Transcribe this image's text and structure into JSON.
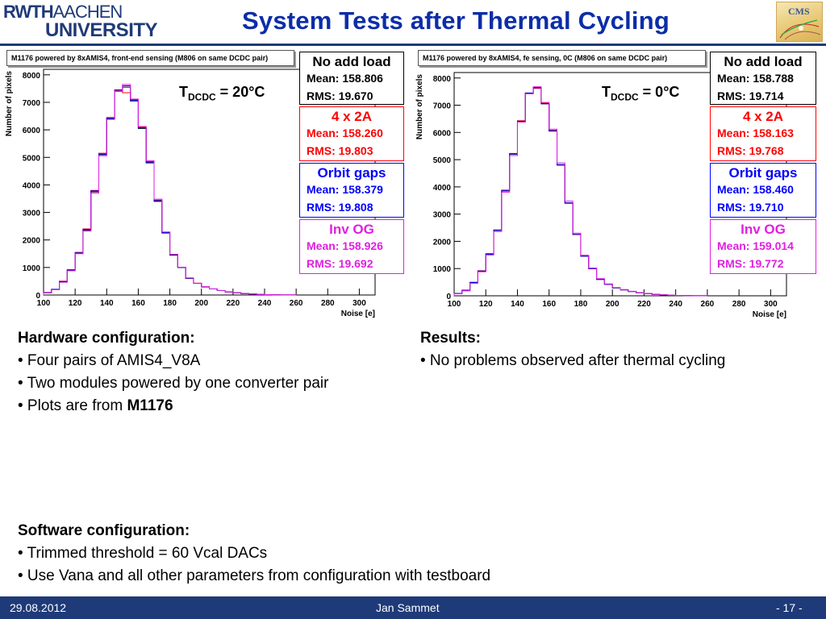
{
  "header": {
    "logo_line1": "RWTH",
    "logo_line1b": "AACHEN",
    "logo_line2": "UNIVERSITY",
    "title": "System Tests after Thermal Cycling",
    "cms_logo_text": "CMS"
  },
  "colors": {
    "brand": "#1f3a78",
    "title": "#0b2da8",
    "no_add_load": "#000000",
    "four_x_2a": "#ff0000",
    "orbit_gaps": "#0000ff",
    "inv_og": "#e020e0"
  },
  "chart_data": [
    {
      "type": "histogram",
      "title": "M1176 powered by 8xAMIS4, front-end sensing (M806 on same DCDC pair)",
      "annotation_prefix": "T",
      "annotation_sub": "DCDC",
      "annotation_suffix": " = 20°C",
      "xlabel": "Noise [e]",
      "ylabel": "Number of pixels",
      "xlim": [
        100,
        310
      ],
      "ylim": [
        0,
        8200
      ],
      "xticks": [
        100,
        120,
        140,
        160,
        180,
        200,
        220,
        240,
        260,
        280,
        300
      ],
      "yticks": [
        0,
        1000,
        2000,
        3000,
        4000,
        5000,
        6000,
        7000,
        8000
      ],
      "bin_width": 5,
      "bin_start": 100,
      "series": [
        {
          "name": "No add load",
          "mean": "Mean: 158.806",
          "rms": "RMS: 19.670",
          "color": "#000000",
          "values": [
            80,
            200,
            480,
            900,
            1520,
            2350,
            3750,
            5100,
            6400,
            7450,
            7600,
            7050,
            6050,
            4800,
            3400,
            2250,
            1450,
            1000,
            600,
            420,
            290,
            220,
            160,
            110,
            80,
            50,
            35,
            20,
            12,
            8,
            4,
            2
          ]
        },
        {
          "name": "4 x 2A",
          "mean": "Mean: 158.260",
          "rms": "RMS: 19.803",
          "color": "#ff0000",
          "values": [
            90,
            210,
            500,
            920,
            1550,
            2400,
            3800,
            5150,
            6450,
            7400,
            7350,
            7100,
            6100,
            4850,
            3450,
            2280,
            1480,
            1000,
            620,
            430,
            300,
            220,
            160,
            110,
            80,
            50,
            35,
            20,
            12,
            8,
            4,
            2
          ]
        },
        {
          "name": "Orbit gaps",
          "mean": "Mean: 158.379",
          "rms": "RMS: 19.808",
          "color": "#0000ff",
          "values": [
            85,
            205,
            490,
            910,
            1530,
            2380,
            3780,
            5120,
            6420,
            7420,
            7550,
            7080,
            6080,
            4830,
            3430,
            2270,
            1470,
            1000,
            610,
            425,
            295,
            220,
            160,
            110,
            80,
            50,
            35,
            20,
            12,
            8,
            4,
            2
          ]
        },
        {
          "name": "Inv OG",
          "mean": "Mean: 158.926",
          "rms": "RMS: 19.692",
          "color": "#e020e0",
          "values": [
            75,
            190,
            460,
            880,
            1500,
            2320,
            3700,
            5060,
            6380,
            7420,
            7650,
            7120,
            6120,
            4880,
            3480,
            2290,
            1480,
            1010,
            620,
            430,
            300,
            225,
            165,
            115,
            82,
            52,
            36,
            21,
            13,
            8,
            4,
            2
          ]
        }
      ]
    },
    {
      "type": "histogram",
      "title": "M1176 powered by 8xAMIS4, fe sensing, 0C (M806 on same DCDC pair)",
      "annotation_prefix": "T",
      "annotation_sub": "DCDC",
      "annotation_suffix": " = 0°C",
      "xlabel": "Noise [e]",
      "ylabel": "Number of pixels",
      "xlim": [
        100,
        310
      ],
      "ylim": [
        0,
        8200
      ],
      "xticks": [
        100,
        120,
        140,
        160,
        180,
        200,
        220,
        240,
        260,
        280,
        300
      ],
      "yticks": [
        0,
        1000,
        2000,
        3000,
        4000,
        5000,
        6000,
        7000,
        8000
      ],
      "bin_width": 5,
      "bin_start": 100,
      "series": [
        {
          "name": "No add load",
          "mean": "Mean: 158.788",
          "rms": "RMS: 19.714",
          "color": "#000000",
          "values": [
            80,
            190,
            480,
            900,
            1520,
            2400,
            3850,
            5200,
            6400,
            7450,
            7650,
            7050,
            6050,
            4800,
            3400,
            2250,
            1450,
            1000,
            600,
            420,
            290,
            220,
            160,
            110,
            80,
            50,
            35,
            20,
            12,
            8,
            4,
            2
          ]
        },
        {
          "name": "4 x 2A",
          "mean": "Mean: 158.163",
          "rms": "RMS: 19.768",
          "color": "#ff0000",
          "values": [
            90,
            210,
            500,
            920,
            1550,
            2420,
            3880,
            5230,
            6430,
            7430,
            7620,
            7080,
            6080,
            4820,
            3420,
            2260,
            1460,
            1000,
            610,
            425,
            295,
            220,
            160,
            110,
            80,
            50,
            35,
            20,
            12,
            8,
            4,
            2
          ]
        },
        {
          "name": "Orbit gaps",
          "mean": "Mean: 158.460",
          "rms": "RMS: 19.710",
          "color": "#0000ff",
          "values": [
            85,
            200,
            490,
            910,
            1530,
            2410,
            3860,
            5210,
            6410,
            7440,
            7640,
            7060,
            6060,
            4810,
            3410,
            2255,
            1455,
            1000,
            605,
            422,
            292,
            220,
            160,
            110,
            80,
            50,
            35,
            20,
            12,
            8,
            4,
            2
          ]
        },
        {
          "name": "Inv OG",
          "mean": "Mean: 159.014",
          "rms": "RMS: 19.772",
          "color": "#e020e0",
          "values": [
            75,
            185,
            460,
            880,
            1500,
            2360,
            3800,
            5150,
            6380,
            7420,
            7680,
            7100,
            6120,
            4880,
            3480,
            2300,
            1490,
            1020,
            630,
            435,
            305,
            228,
            168,
            116,
            84,
            52,
            36,
            21,
            13,
            8,
            4,
            2
          ]
        }
      ]
    }
  ],
  "left_text": {
    "hw_heading": "Hardware configuration:",
    "hw_items": [
      "• Four pairs of AMIS4_V8A",
      "• Two modules powered by one converter pair"
    ],
    "hw_item3_prefix": "• Plots are from ",
    "hw_item3_bold": "M1176",
    "sw_heading": "Software configuration:",
    "sw_items": [
      "• Trimmed threshold = 60 Vcal DACs",
      "• Use Vana and all other parameters from configuration with testboard"
    ]
  },
  "right_text": {
    "heading": "Results:",
    "items": [
      "• No problems observed after thermal cycling"
    ]
  },
  "footer": {
    "date": "29.08.2012",
    "author": "Jan Sammet",
    "page": "- 17 -"
  }
}
